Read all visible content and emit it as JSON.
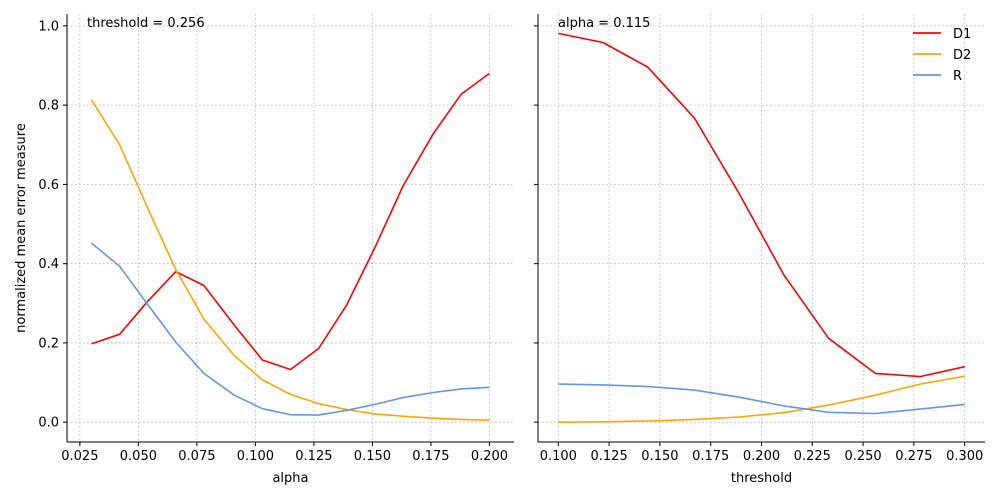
{
  "chart_data": [
    {
      "type": "line",
      "annotation": "threshold = 0.256",
      "xlabel": "alpha",
      "ylabel": "normalized mean error measure",
      "xlim": [
        0.0195,
        0.2105
      ],
      "ylim": [
        -0.05,
        1.03
      ],
      "xticks": [
        0.025,
        0.05,
        0.075,
        0.1,
        0.125,
        0.15,
        0.175,
        0.2
      ],
      "xtick_labels": [
        "0.025",
        "0.050",
        "0.075",
        "0.100",
        "0.125",
        "0.150",
        "0.175",
        "0.200"
      ],
      "yticks": [
        0.0,
        0.2,
        0.4,
        0.6,
        0.8,
        1.0
      ],
      "ytick_labels": [
        "0.0",
        "0.2",
        "0.4",
        "0.6",
        "0.8",
        "1.0"
      ],
      "grid": true,
      "x": [
        0.03,
        0.042,
        0.054,
        0.066,
        0.078,
        0.091,
        0.103,
        0.115,
        0.127,
        0.139,
        0.151,
        0.163,
        0.176,
        0.188,
        0.2
      ],
      "series": [
        {
          "name": "D1",
          "color": "#ff0000",
          "values": [
            0.198,
            0.222,
            0.305,
            0.38,
            0.345,
            0.245,
            0.157,
            0.133,
            0.186,
            0.296,
            0.44,
            0.595,
            0.728,
            0.828,
            0.88
          ]
        },
        {
          "name": "D2",
          "color": "#ffa500",
          "values": [
            0.813,
            0.7,
            0.54,
            0.385,
            0.26,
            0.168,
            0.107,
            0.07,
            0.047,
            0.032,
            0.021,
            0.015,
            0.01,
            0.007,
            0.005
          ]
        },
        {
          "name": "R",
          "color": "#6495ed",
          "values": [
            0.452,
            0.393,
            0.297,
            0.202,
            0.123,
            0.068,
            0.034,
            0.019,
            0.018,
            0.03,
            0.045,
            0.062,
            0.075,
            0.084,
            0.088
          ]
        }
      ]
    },
    {
      "type": "line",
      "annotation": "alpha = 0.115",
      "xlabel": "threshold",
      "ylabel": "",
      "xlim": [
        0.09,
        0.31
      ],
      "ylim": [
        -0.05,
        1.03
      ],
      "xticks": [
        0.1,
        0.125,
        0.15,
        0.175,
        0.2,
        0.225,
        0.25,
        0.275,
        0.3
      ],
      "xtick_labels": [
        "0.100",
        "0.125",
        "0.150",
        "0.175",
        "0.200",
        "0.225",
        "0.250",
        "0.275",
        "0.300"
      ],
      "yticks": [
        0.0,
        0.2,
        0.4,
        0.6,
        0.8,
        1.0
      ],
      "ytick_labels": [],
      "grid": true,
      "legend": "top-right",
      "x": [
        0.1,
        0.122,
        0.144,
        0.167,
        0.189,
        0.211,
        0.233,
        0.256,
        0.278,
        0.3
      ],
      "series": [
        {
          "name": "D1",
          "color": "#ff0000",
          "values": [
            0.981,
            0.958,
            0.896,
            0.767,
            0.577,
            0.372,
            0.212,
            0.123,
            0.115,
            0.14
          ]
        },
        {
          "name": "D2",
          "color": "#ffa500",
          "values": [
            0.0,
            0.001,
            0.003,
            0.007,
            0.013,
            0.024,
            0.043,
            0.068,
            0.096,
            0.116
          ]
        },
        {
          "name": "R",
          "color": "#6495ed",
          "values": [
            0.096,
            0.094,
            0.09,
            0.081,
            0.063,
            0.041,
            0.025,
            0.022,
            0.033,
            0.045
          ]
        }
      ]
    }
  ]
}
